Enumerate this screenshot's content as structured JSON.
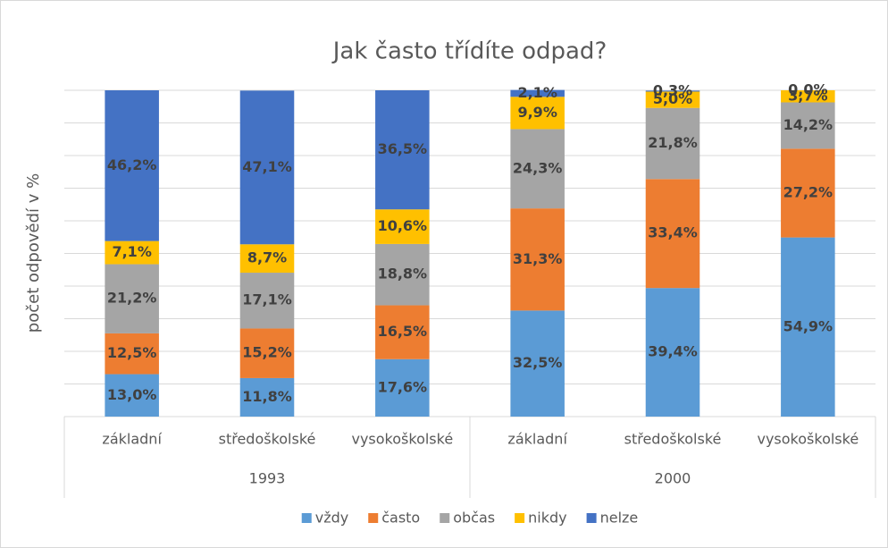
{
  "chart_data": {
    "type": "stacked_bar",
    "title": "Jak často třídíte odpad?",
    "y_label": "počet odpovědí v %",
    "groups": [
      {
        "name": "1993",
        "categories": [
          "základní",
          "středoškolské",
          "vysokoškolské"
        ]
      },
      {
        "name": "2000",
        "categories": [
          "základní",
          "středoškolské",
          "vysokoškolské"
        ]
      }
    ],
    "ylim": [
      0,
      100
    ],
    "yticks": [
      0,
      10,
      20,
      30,
      40,
      50,
      60,
      70,
      80,
      90,
      100
    ],
    "ytick_labels": false,
    "grid": true,
    "legend": "bottom",
    "series": [
      {
        "name": "vždy",
        "color": "#5b9bd5",
        "values": [
          13.0,
          11.8,
          17.6,
          32.5,
          39.4,
          54.9
        ],
        "value_labels": [
          "13,0%",
          "11,8%",
          "17,6%",
          "32,5%",
          "39,4%",
          "54,9%"
        ]
      },
      {
        "name": "často",
        "color": "#ed7d31",
        "values": [
          12.5,
          15.2,
          16.5,
          31.3,
          33.4,
          27.2
        ],
        "value_labels": [
          "12,5%",
          "15,2%",
          "16,5%",
          "31,3%",
          "33,4%",
          "27,2%"
        ]
      },
      {
        "name": "občas",
        "color": "#a5a5a5",
        "values": [
          21.2,
          17.1,
          18.8,
          24.3,
          21.8,
          14.2
        ],
        "value_labels": [
          "21,2%",
          "17,1%",
          "18,8%",
          "24,3%",
          "21,8%",
          "14,2%"
        ]
      },
      {
        "name": "nikdy",
        "color": "#ffc000",
        "values": [
          7.1,
          8.7,
          10.6,
          9.9,
          5.0,
          3.7
        ],
        "value_labels": [
          "7,1%",
          "8,7%",
          "10,6%",
          "9,9%",
          "5,0%",
          "3,7%"
        ]
      },
      {
        "name": "nelze",
        "color": "#4472c4",
        "values": [
          46.2,
          47.1,
          36.5,
          2.1,
          0.3,
          0.0
        ],
        "value_labels": [
          "46,2%",
          "47,1%",
          "36,5%",
          "2,1%",
          "0,3%",
          "0,0%"
        ]
      }
    ]
  }
}
